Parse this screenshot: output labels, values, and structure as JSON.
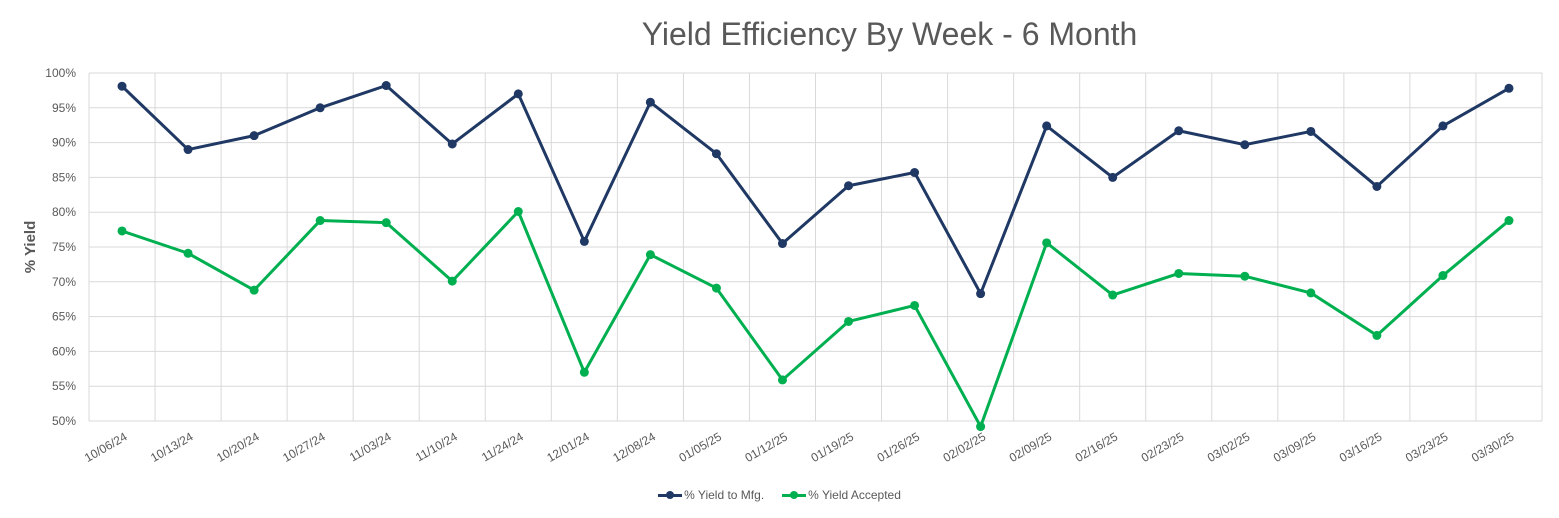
{
  "chart_data": {
    "type": "line",
    "title": "Yield Efficiency By Week - 6 Month",
    "xlabel": "",
    "ylabel": "% Yield",
    "ylim": [
      50,
      100
    ],
    "ytick_step": 5,
    "ytick_labels": [
      "50%",
      "55%",
      "60%",
      "65%",
      "70%",
      "75%",
      "80%",
      "85%",
      "90%",
      "95%",
      "100%"
    ],
    "grid": true,
    "legend_position": "bottom",
    "categories": [
      "10/06/24",
      "10/13/24",
      "10/20/24",
      "10/27/24",
      "11/03/24",
      "11/10/24",
      "11/24/24",
      "12/01/24",
      "12/08/24",
      "01/05/25",
      "01/12/25",
      "01/19/25",
      "01/26/25",
      "02/02/25",
      "02/09/25",
      "02/16/25",
      "02/23/25",
      "03/02/25",
      "03/09/25",
      "03/16/25",
      "03/23/25",
      "03/30/25"
    ],
    "series": [
      {
        "name": "% Yield to Mfg.",
        "color": "#1f3864",
        "values": [
          98.1,
          89.0,
          91.0,
          95.0,
          98.2,
          89.8,
          97.0,
          75.8,
          95.8,
          88.4,
          75.5,
          83.8,
          85.7,
          68.3,
          92.4,
          85.0,
          91.7,
          89.7,
          91.6,
          83.7,
          92.4,
          97.8
        ]
      },
      {
        "name": "% Yield Accepted",
        "color": "#00b050",
        "values": [
          77.3,
          74.1,
          68.8,
          78.8,
          78.5,
          70.1,
          80.1,
          57.0,
          73.9,
          69.1,
          55.9,
          64.3,
          66.6,
          49.2,
          75.6,
          68.1,
          71.2,
          70.8,
          68.4,
          62.3,
          70.9,
          78.8
        ]
      }
    ]
  }
}
